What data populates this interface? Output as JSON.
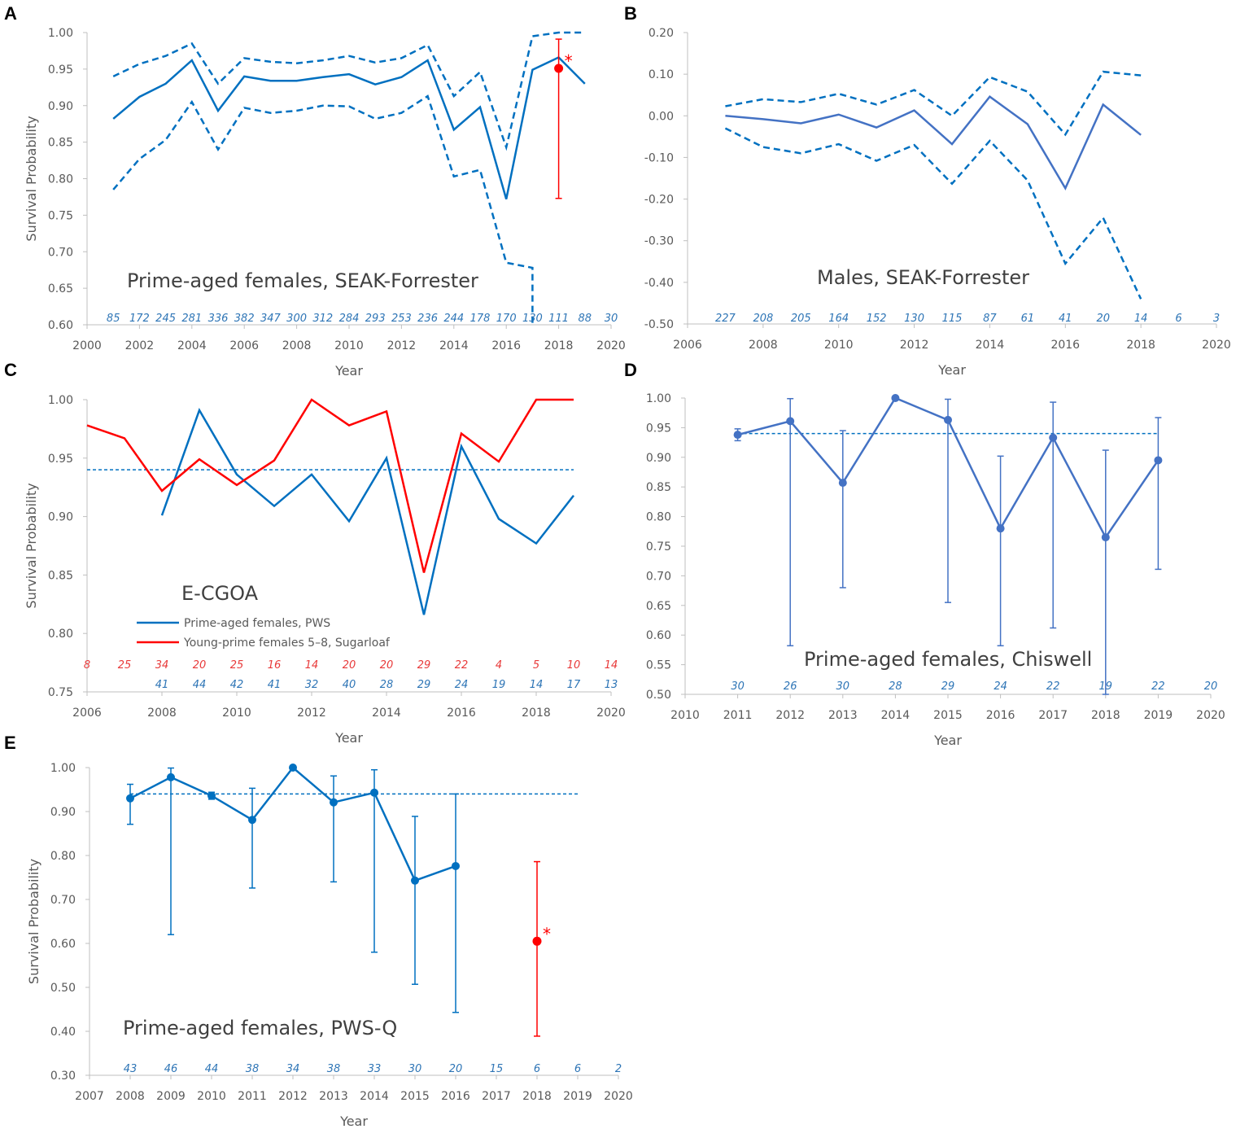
{
  "colors": {
    "blue": "#0070c0",
    "blue2": "#4472c4",
    "red": "#ff0000",
    "count_blue": "#2e75b6",
    "count_red": "#e83a3a",
    "axis": "#bfbfbf"
  },
  "chart_data": [
    {
      "id": "A",
      "type": "line",
      "panel_label": "A",
      "annotation": "Prime-aged females, SEAK-Forrester",
      "xlabel": "Year",
      "ylabel": "Survival Probability",
      "xlim": [
        2000,
        2020
      ],
      "xticks": [
        2000,
        2002,
        2004,
        2006,
        2008,
        2010,
        2012,
        2014,
        2016,
        2018,
        2020
      ],
      "ylim": [
        0.6,
        1.0
      ],
      "yticks": [
        "0.60",
        "0.65",
        "0.70",
        "0.75",
        "0.80",
        "0.85",
        "0.90",
        "0.95",
        "1.00"
      ],
      "series": [
        {
          "name": "estimate",
          "style": "solid",
          "color": "blue",
          "x": [
            2001,
            2002,
            2003,
            2004,
            2005,
            2006,
            2007,
            2008,
            2009,
            2010,
            2011,
            2012,
            2013,
            2014,
            2015,
            2016,
            2017,
            2018,
            2019
          ],
          "y": [
            0.882,
            0.912,
            0.93,
            0.962,
            0.893,
            0.94,
            0.934,
            0.934,
            0.939,
            0.943,
            0.929,
            0.939,
            0.962,
            0.867,
            0.898,
            0.772,
            0.949,
            0.966,
            0.93
          ]
        },
        {
          "name": "upper CI",
          "style": "dashed",
          "color": "blue",
          "x": [
            2001,
            2002,
            2003,
            2004,
            2005,
            2006,
            2007,
            2008,
            2009,
            2010,
            2011,
            2012,
            2013,
            2014,
            2015,
            2016,
            2017,
            2018,
            2019
          ],
          "y": [
            0.94,
            0.957,
            0.968,
            0.985,
            0.93,
            0.965,
            0.96,
            0.958,
            0.962,
            0.968,
            0.959,
            0.965,
            0.983,
            0.913,
            0.946,
            0.843,
            0.995,
            1.0,
            1.0
          ]
        },
        {
          "name": "lower CI",
          "style": "dashed",
          "color": "blue",
          "x": [
            2001,
            2002,
            2003,
            2004,
            2005,
            2006,
            2007,
            2008,
            2009,
            2010,
            2011,
            2012,
            2013,
            2014,
            2015,
            2016,
            2017,
            2017
          ],
          "y": [
            0.785,
            0.827,
            0.853,
            0.905,
            0.84,
            0.897,
            0.89,
            0.893,
            0.9,
            0.899,
            0.882,
            0.89,
            0.913,
            0.803,
            0.812,
            0.685,
            0.678,
            0.6
          ]
        }
      ],
      "points": [
        {
          "x": 2018,
          "y": 0.951,
          "lo": 0.773,
          "hi": 0.991,
          "color": "red",
          "marker": "*"
        }
      ],
      "counts": [
        {
          "color": "count_blue",
          "x0": 2001,
          "values": [
            "85",
            "172",
            "245",
            "281",
            "336",
            "382",
            "347",
            "300",
            "312",
            "284",
            "293",
            "253",
            "236",
            "244",
            "178",
            "170",
            "130",
            "111",
            "88",
            "30"
          ]
        }
      ]
    },
    {
      "id": "B",
      "type": "line",
      "panel_label": "B",
      "annotation": "Males, SEAK-Forrester",
      "xlabel": "Year",
      "ylabel": "",
      "xlim": [
        2006,
        2020
      ],
      "xticks": [
        2006,
        2008,
        2010,
        2012,
        2014,
        2016,
        2018,
        2020
      ],
      "ylim": [
        -0.5,
        0.2
      ],
      "yticks": [
        "-0.50",
        "-0.40",
        "-0.30",
        "-0.20",
        "-0.10",
        "0.00",
        "0.10",
        "0.20"
      ],
      "series": [
        {
          "name": "estimate",
          "style": "solid",
          "color": "blue2",
          "x": [
            2007,
            2008,
            2009,
            2010,
            2011,
            2012,
            2013,
            2014,
            2015,
            2016,
            2017,
            2018
          ],
          "y": [
            0.0,
            -0.008,
            -0.018,
            0.003,
            -0.028,
            0.013,
            -0.068,
            0.046,
            -0.02,
            -0.174,
            0.027,
            -0.046
          ]
        },
        {
          "name": "upper CI",
          "style": "dashed",
          "color": "blue",
          "x": [
            2007,
            2008,
            2009,
            2010,
            2011,
            2012,
            2013,
            2014,
            2015,
            2016,
            2017,
            2018
          ],
          "y": [
            0.023,
            0.04,
            0.033,
            0.053,
            0.027,
            0.062,
            0.0,
            0.093,
            0.058,
            -0.045,
            0.106,
            0.097
          ]
        },
        {
          "name": "lower CI",
          "style": "dashed",
          "color": "blue",
          "x": [
            2007,
            2008,
            2009,
            2010,
            2011,
            2012,
            2013,
            2014,
            2015,
            2016,
            2017,
            2018
          ],
          "y": [
            -0.03,
            -0.075,
            -0.09,
            -0.068,
            -0.108,
            -0.07,
            -0.163,
            -0.06,
            -0.155,
            -0.355,
            -0.245,
            -0.44
          ]
        }
      ],
      "points": [],
      "counts": [
        {
          "color": "count_blue",
          "x0": 2007,
          "values": [
            "227",
            "208",
            "205",
            "164",
            "152",
            "130",
            "115",
            "87",
            "61",
            "41",
            "20",
            "14",
            "6",
            "3"
          ]
        }
      ]
    },
    {
      "id": "C",
      "type": "line",
      "panel_label": "C",
      "annotation": "E-CGOA",
      "xlabel": "Year",
      "ylabel": "Survival Probability",
      "xlim": [
        2006,
        2020
      ],
      "xticks": [
        2006,
        2008,
        2010,
        2012,
        2014,
        2016,
        2018,
        2020
      ],
      "ylim": [
        0.75,
        1.0
      ],
      "yticks": [
        "0.75",
        "0.80",
        "0.85",
        "0.90",
        "0.95",
        "1.00"
      ],
      "reference": {
        "y": 0.94,
        "x": [
          2006,
          2019
        ]
      },
      "legend": [
        "Prime-aged females, PWS",
        "Young-prime females 5–8, Sugarloaf"
      ],
      "series": [
        {
          "name": "Prime-aged females, PWS",
          "style": "solid",
          "color": "blue",
          "x": [
            2008,
            2009,
            2010,
            2011,
            2012,
            2013,
            2014,
            2015,
            2016,
            2017,
            2018,
            2019
          ],
          "y": [
            0.901,
            0.991,
            0.936,
            0.909,
            0.936,
            0.896,
            0.95,
            0.816,
            0.96,
            0.898,
            0.877,
            0.918
          ]
        },
        {
          "name": "Young-prime females 5–8, Sugarloaf",
          "style": "solid",
          "color": "red",
          "x": [
            2006,
            2007,
            2008,
            2009,
            2010,
            2011,
            2012,
            2013,
            2014,
            2015,
            2016,
            2017,
            2018,
            2019
          ],
          "y": [
            0.978,
            0.967,
            0.922,
            0.949,
            0.927,
            0.948,
            1.0,
            0.978,
            0.99,
            0.852,
            0.971,
            0.947,
            1.0,
            1.0
          ]
        }
      ],
      "points": [],
      "counts": [
        {
          "color": "count_red",
          "x0": 2006,
          "values": [
            "8",
            "25",
            "34",
            "20",
            "25",
            "16",
            "14",
            "20",
            "20",
            "29",
            "22",
            "4",
            "5",
            "10",
            "14"
          ]
        },
        {
          "color": "count_blue",
          "x0": 2008,
          "values": [
            "41",
            "44",
            "42",
            "41",
            "32",
            "40",
            "28",
            "29",
            "24",
            "19",
            "14",
            "17",
            "13"
          ]
        }
      ]
    },
    {
      "id": "D",
      "type": "line",
      "panel_label": "D",
      "annotation": "Prime-aged females, Chiswell",
      "xlabel": "Year",
      "ylabel": "",
      "xlim": [
        2010,
        2020
      ],
      "xticks": [
        2010,
        2011,
        2012,
        2013,
        2014,
        2015,
        2016,
        2017,
        2018,
        2019,
        2020
      ],
      "ylim": [
        0.5,
        1.0
      ],
      "yticks": [
        "0.50",
        "0.55",
        "0.60",
        "0.65",
        "0.70",
        "0.75",
        "0.80",
        "0.85",
        "0.90",
        "0.95",
        "1.00"
      ],
      "reference": {
        "y": 0.94,
        "x": [
          2011,
          2019
        ]
      },
      "series": [
        {
          "name": "estimate",
          "style": "solid",
          "color": "blue2",
          "marker": true,
          "x": [
            2011,
            2012,
            2013,
            2014,
            2015,
            2016,
            2017,
            2018,
            2019
          ],
          "y": [
            0.938,
            0.961,
            0.857,
            1.0,
            0.963,
            0.78,
            0.933,
            0.765,
            0.895
          ],
          "lo": [
            0.928,
            0.582,
            0.68,
            1.0,
            0.655,
            0.582,
            0.612,
            0.5,
            0.711
          ],
          "hi": [
            0.948,
            0.999,
            0.945,
            1.0,
            0.998,
            0.902,
            0.993,
            0.912,
            0.967
          ]
        }
      ],
      "points": [],
      "counts": [
        {
          "color": "count_blue",
          "x0": 2011,
          "values": [
            "30",
            "26",
            "30",
            "28",
            "29",
            "24",
            "22",
            "19",
            "22",
            "20"
          ]
        }
      ]
    },
    {
      "id": "E",
      "type": "line",
      "panel_label": "E",
      "annotation": "Prime-aged females, PWS-Q",
      "xlabel": "Year",
      "ylabel": "Survival Probability",
      "xlim": [
        2007,
        2020
      ],
      "xticks": [
        2007,
        2008,
        2009,
        2010,
        2011,
        2012,
        2013,
        2014,
        2015,
        2016,
        2017,
        2018,
        2019,
        2020
      ],
      "ylim": [
        0.3,
        1.0
      ],
      "yticks": [
        "0.30",
        "0.40",
        "0.50",
        "0.60",
        "0.70",
        "0.80",
        "0.90",
        "1.00"
      ],
      "reference": {
        "y": 0.94,
        "x": [
          2008,
          2019
        ]
      },
      "series": [
        {
          "name": "estimate",
          "style": "solid",
          "color": "blue",
          "marker": true,
          "x": [
            2008,
            2009,
            2010,
            2011,
            2012,
            2013,
            2014,
            2015,
            2016
          ],
          "y": [
            0.93,
            0.978,
            0.936,
            0.881,
            1.0,
            0.921,
            0.943,
            0.743,
            0.776
          ],
          "lo": [
            0.871,
            0.62,
            0.928,
            0.726,
            1.0,
            0.74,
            0.58,
            0.507,
            0.443
          ],
          "hi": [
            0.962,
            0.999,
            0.944,
            0.953,
            1.0,
            0.981,
            0.995,
            0.889,
            0.94
          ]
        }
      ],
      "points": [
        {
          "x": 2018,
          "y": 0.605,
          "lo": 0.389,
          "hi": 0.786,
          "color": "red",
          "marker": "*"
        }
      ],
      "counts": [
        {
          "color": "count_blue",
          "x0": 2008,
          "values": [
            "43",
            "46",
            "44",
            "38",
            "34",
            "38",
            "33",
            "30",
            "20",
            "15",
            "6",
            "6",
            "2"
          ]
        }
      ]
    }
  ]
}
